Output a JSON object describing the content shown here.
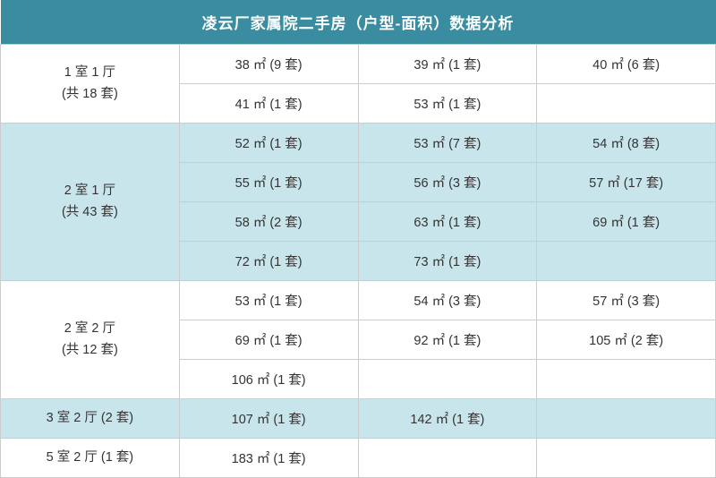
{
  "title": "凌云厂家属院二手房（户型-面积）数据分析",
  "colors": {
    "header_bg": "#3a8ca0",
    "header_text": "#ffffff",
    "band_white": "#ffffff",
    "band_blue": "#c9e5ec",
    "border": "#cccccc",
    "text": "#333333"
  },
  "columns": 4,
  "col_widths_pct": [
    25,
    25,
    25,
    25
  ],
  "groups": [
    {
      "label_line1": "1 室 1 厅",
      "label_line2": "(共 18 套)",
      "band": "white",
      "rows": [
        [
          "38 ㎡ (9 套)",
          "39 ㎡ (1 套)",
          "40 ㎡ (6 套)"
        ],
        [
          "41 ㎡ (1 套)",
          "53 ㎡ (1 套)",
          ""
        ]
      ]
    },
    {
      "label_line1": "2 室 1 厅",
      "label_line2": "(共 43 套)",
      "band": "blue",
      "rows": [
        [
          "52 ㎡ (1 套)",
          "53 ㎡ (7 套)",
          "54 ㎡ (8 套)"
        ],
        [
          "55 ㎡ (1 套)",
          "56 ㎡ (3 套)",
          "57 ㎡ (17 套)"
        ],
        [
          "58 ㎡ (2 套)",
          "63 ㎡ (1 套)",
          "69 ㎡ (1 套)"
        ],
        [
          "72 ㎡ (1 套)",
          "73 ㎡ (1 套)",
          ""
        ]
      ]
    },
    {
      "label_line1": "2 室 2 厅",
      "label_line2": "(共 12 套)",
      "band": "white",
      "rows": [
        [
          "53 ㎡ (1 套)",
          "54 ㎡ (3 套)",
          "57 ㎡ (3 套)"
        ],
        [
          "69 ㎡ (1 套)",
          "92 ㎡ (1 套)",
          "105 ㎡ (2 套)"
        ],
        [
          "106 ㎡ (1 套)",
          "",
          ""
        ]
      ]
    },
    {
      "label_line1": "3 室 2 厅 (2 套)",
      "label_line2": "",
      "band": "blue",
      "rows": [
        [
          "107 ㎡ (1 套)",
          "142 ㎡ (1 套)",
          ""
        ]
      ]
    },
    {
      "label_line1": "5 室 2 厅 (1 套)",
      "label_line2": "",
      "band": "white",
      "rows": [
        [
          "183 ㎡ (1 套)",
          "",
          ""
        ]
      ]
    }
  ]
}
